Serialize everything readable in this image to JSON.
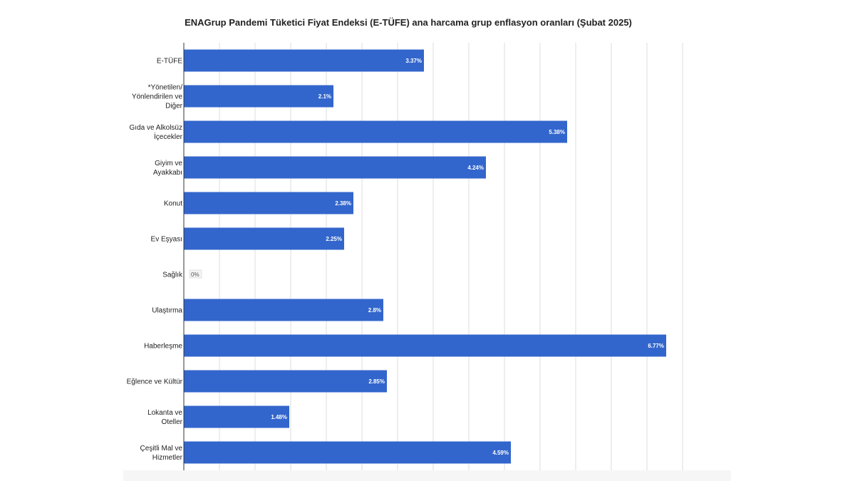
{
  "chart_data": {
    "type": "bar",
    "orientation": "horizontal",
    "title": "ENAGrup Pandemi Tüketici Fiyat Endeksi (E-TÜFE) ana harcama grup enflasyon oranları (Şubat 2025)",
    "categories": [
      "E-TÜFE",
      "*Yönetilen/\nYönlendirilen ve\nDiğer",
      "Gıda ve Alkolsüz\nİçecekler",
      "Giyim ve\nAyakkabı",
      "Konut",
      "Ev Eşyası",
      "Sağlık",
      "Ulaştırma",
      "Haberleşme",
      "Eğlence ve Kültür",
      "Lokanta ve\nOteller",
      "Çeşitli Mal ve\nHizmetler"
    ],
    "values": [
      3.37,
      2.1,
      5.38,
      4.24,
      2.38,
      2.25,
      0,
      2.8,
      6.77,
      2.85,
      1.48,
      4.59
    ],
    "value_labels": [
      "3.37%",
      "2.1%",
      "5.38%",
      "4.24%",
      "2.38%",
      "2.25%",
      "0%",
      "2.8%",
      "6.77%",
      "2.85%",
      "1.48%",
      "4.59%"
    ],
    "xlim": [
      0,
      7
    ],
    "grid": true,
    "xlabel": "",
    "ylabel": "",
    "bar_color": "#3366cc",
    "grid_color": "#dddddd",
    "axis_color": "#333333"
  }
}
